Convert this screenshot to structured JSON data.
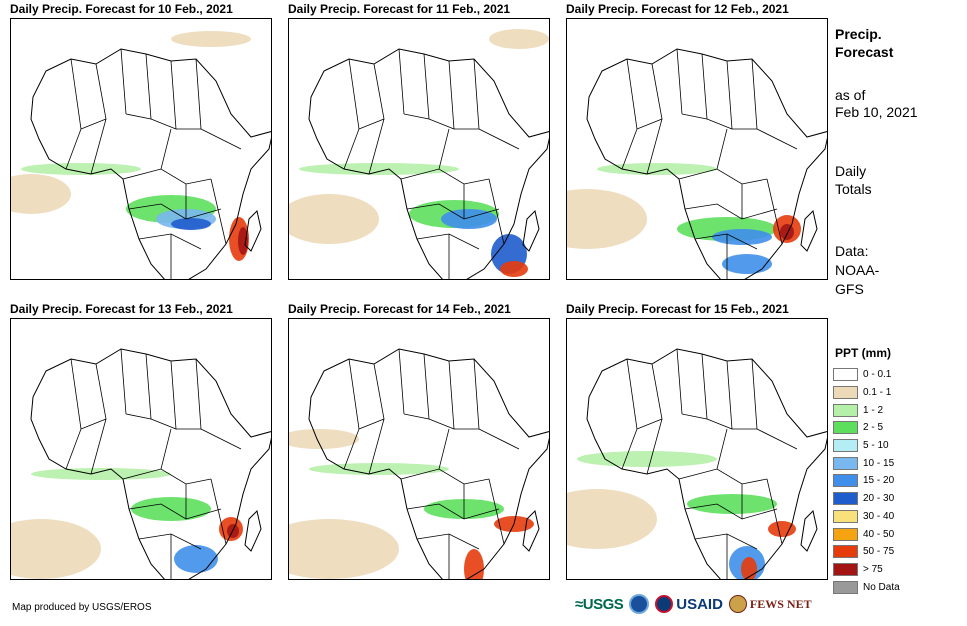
{
  "panels": [
    {
      "title": "Daily Precip. Forecast for 10 Feb., 2021"
    },
    {
      "title": "Daily Precip. Forecast for 11 Feb., 2021"
    },
    {
      "title": "Daily Precip. Forecast for 12 Feb., 2021"
    },
    {
      "title": "Daily Precip. Forecast for 13 Feb., 2021"
    },
    {
      "title": "Daily Precip. Forecast for 14 Feb., 2021"
    },
    {
      "title": "Daily Precip. Forecast for 15 Feb., 2021"
    }
  ],
  "side": {
    "heading_1": "Precip.",
    "heading_2": "Forecast",
    "asof_1": "as of",
    "asof_2": "Feb 10, 2021",
    "totals_1": "Daily",
    "totals_2": "Totals",
    "data_1": "Data:",
    "data_2": "NOAA-",
    "data_3": "GFS"
  },
  "legend": {
    "title": "PPT (mm)",
    "items": [
      {
        "label": "0 - 0.1",
        "color": "#ffffff"
      },
      {
        "label": "0.1 - 1",
        "color": "#ecd9b8"
      },
      {
        "label": "1 - 2",
        "color": "#b5f0a8"
      },
      {
        "label": "2 - 5",
        "color": "#5ddf5d"
      },
      {
        "label": "5 - 10",
        "color": "#b4eef4"
      },
      {
        "label": "10 - 15",
        "color": "#79b7ef"
      },
      {
        "label": "15 - 20",
        "color": "#3f8fea"
      },
      {
        "label": "20 - 30",
        "color": "#1f5ccc"
      },
      {
        "label": "30 - 40",
        "color": "#f8e07a"
      },
      {
        "label": "40 - 50",
        "color": "#f6a312"
      },
      {
        "label": "50 - 75",
        "color": "#e63c0c"
      },
      {
        "label": "> 75",
        "color": "#a31515"
      },
      {
        "label": "No Data",
        "color": "#999999"
      }
    ]
  },
  "footer": {
    "credit": "Map produced by USGS/EROS",
    "logo_usgs": "≈USGS",
    "logo_usaid": "USAID",
    "logo_fews": "FEWS NET"
  }
}
